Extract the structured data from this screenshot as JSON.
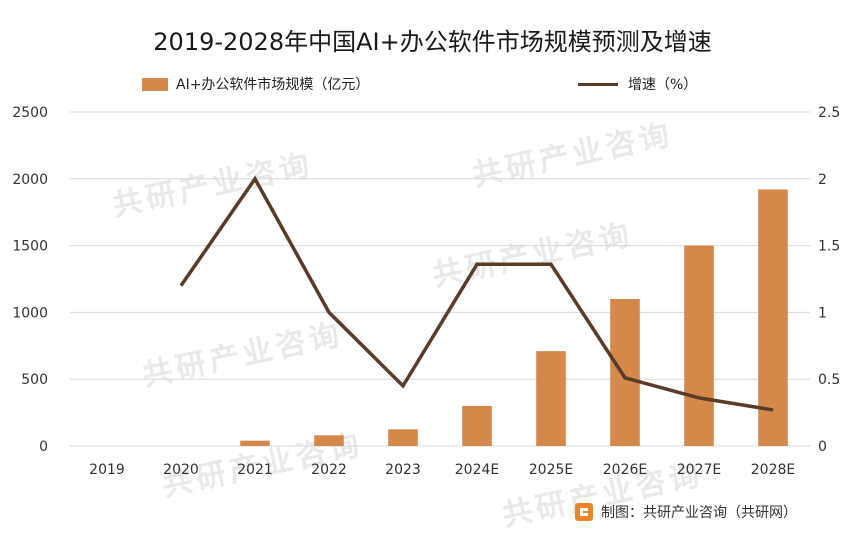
{
  "chart_data": {
    "type": "bar",
    "title": "2019-2028年中国AI+办公软件市场规模预测及增速",
    "categories": [
      "2019",
      "2020",
      "2021",
      "2022",
      "2023",
      "2024E",
      "2025E",
      "2026E",
      "2027E",
      "2028E"
    ],
    "series": [
      {
        "name": "AI+办公软件市场规模（亿元）",
        "type": "bar",
        "axis": "left",
        "color": "#d4894b",
        "values": [
          0,
          0,
          40,
          80,
          125,
          300,
          710,
          1100,
          1500,
          1920
        ]
      },
      {
        "name": "增速（%）",
        "type": "line",
        "axis": "right",
        "color": "#5a3b28",
        "values": [
          null,
          1.2,
          2.0,
          1.0,
          0.45,
          1.36,
          1.36,
          0.51,
          0.36,
          0.27
        ]
      }
    ],
    "left_axis": {
      "min": 0,
      "max": 2500,
      "ticks": [
        "0",
        "500",
        "1000",
        "1500",
        "2000",
        "2500"
      ]
    },
    "right_axis": {
      "min": 0,
      "max": 2.5,
      "ticks": [
        "0",
        "0.5",
        "1",
        "1.5",
        "2",
        "2.5"
      ]
    },
    "grid": "horizontal",
    "legend_position": "top"
  },
  "source": "制图：共研产业咨询（共研网）",
  "watermark": "共研产业咨询"
}
